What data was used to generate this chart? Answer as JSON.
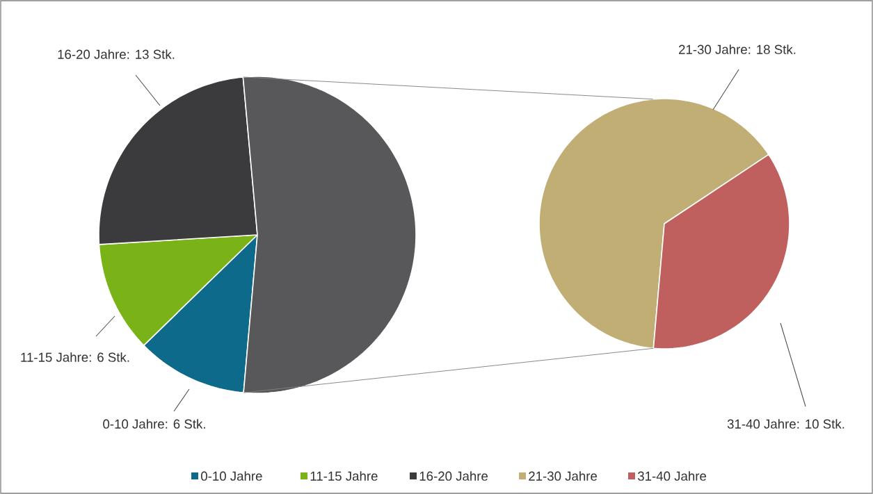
{
  "chart_data": [
    {
      "type": "pie",
      "categories": [
        "0-10 Jahre",
        "11-15 Jahre",
        "16-20 Jahre",
        null
      ],
      "values": [
        6,
        6,
        13,
        28
      ],
      "colors": [
        "#0e6a8a",
        "#7ab317",
        "#3b3b3d",
        "#58585a"
      ],
      "value_labels": [
        "0-10 Jahre: 6 Stk.",
        "11-15 Jahre: 6 Stk.",
        "16-20 Jahre: 13 Stk.",
        null
      ],
      "legend": "bottom"
    },
    {
      "type": "pie",
      "categories": [
        "21-30 Jahre",
        "31-40 Jahre"
      ],
      "values": [
        18,
        10
      ],
      "colors": [
        "#c1ae74",
        "#c0605e"
      ],
      "value_labels": [
        "21-30 Jahre: 18 Stk.",
        "31-40 Jahre: 10 Stk."
      ],
      "legend": "bottom"
    }
  ]
}
